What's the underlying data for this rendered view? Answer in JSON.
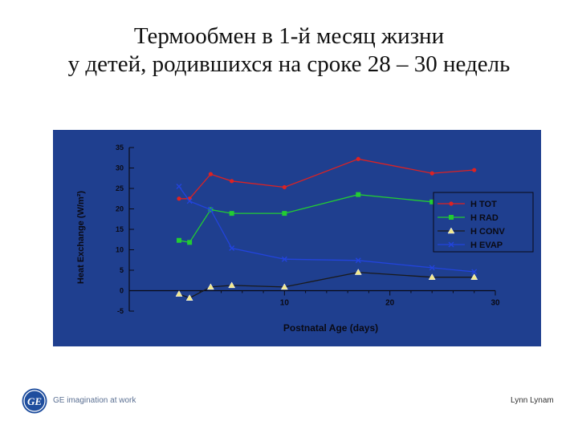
{
  "slide": {
    "title_line1": "Термообмен в 1-й месяц жизни",
    "title_line2": "у детей, родившихся на сроке 28 – 30 недель"
  },
  "footer": {
    "logo_text": "GE",
    "tagline": "GE imagination at work",
    "author": "Lynn Lynam"
  },
  "colors": {
    "panel_bg": "#1f3f8f",
    "axis": "#0a0a14",
    "H TOT": "#dd2222",
    "H RAD": "#22cc33",
    "H CONV": "#1a1a1a",
    "H EVAP": "#2244dd",
    "conv_marker": "#f3e98a"
  },
  "chart_data": {
    "type": "line",
    "xlabel": "Postnatal Age (days)",
    "ylabel": "Heat Exchange (W/m²)",
    "xlim": [
      0,
      30
    ],
    "ylim": [
      -5,
      35
    ],
    "xticks": [
      10,
      20,
      30
    ],
    "yticks": [
      -5,
      0,
      5,
      10,
      15,
      20,
      25,
      30,
      35
    ],
    "grid": false,
    "legend_position": "right",
    "series": [
      {
        "name": "H TOT",
        "marker": "circle",
        "x": [
          0,
          1,
          3,
          5,
          10,
          17,
          24,
          28
        ],
        "y": [
          22.5,
          22.5,
          28.5,
          26.8,
          25.3,
          32.2,
          28.7,
          29.5
        ]
      },
      {
        "name": "H RAD",
        "marker": "square",
        "x": [
          0,
          1,
          3,
          5,
          10,
          17,
          24,
          28
        ],
        "y": [
          12.3,
          11.8,
          19.8,
          18.9,
          18.9,
          23.5,
          21.7,
          22.4
        ]
      },
      {
        "name": "H CONV",
        "marker": "triangle",
        "x": [
          0,
          1,
          3,
          5,
          10,
          17,
          24,
          28
        ],
        "y": [
          -0.8,
          -1.8,
          0.9,
          1.3,
          0.9,
          4.5,
          3.3,
          3.3
        ]
      },
      {
        "name": "H EVAP",
        "marker": "x",
        "x": [
          0,
          1,
          3,
          5,
          10,
          17,
          24,
          28
        ],
        "y": [
          25.5,
          21.9,
          19.8,
          10.4,
          7.7,
          7.4,
          5.6,
          4.6
        ]
      }
    ]
  }
}
